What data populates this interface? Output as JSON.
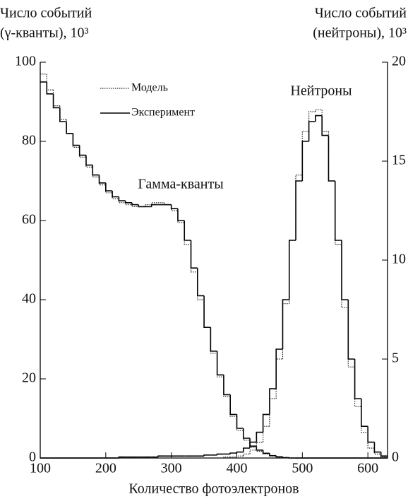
{
  "chart_data": {
    "type": "step",
    "y_label": [
      "Число событий",
      "(γ-кванты), 10³"
    ],
    "y2_label": [
      "Число событий",
      "(нейтроны), 10³"
    ],
    "x_label": "Количество фотоэлектронов",
    "annotations": [
      "Гамма-кванты",
      "Нейтроны"
    ],
    "x": [
      100,
      110,
      120,
      130,
      140,
      150,
      160,
      170,
      180,
      190,
      200,
      210,
      220,
      230,
      240,
      250,
      260,
      270,
      280,
      290,
      300,
      310,
      320,
      330,
      340,
      350,
      360,
      370,
      380,
      390,
      400,
      410,
      420,
      430,
      440,
      450,
      460,
      470,
      480,
      490,
      500,
      510,
      520,
      530,
      540,
      550,
      560,
      570,
      580,
      590,
      600,
      610,
      620
    ],
    "series": [
      {
        "name": "Модель",
        "color": "#222",
        "style": "dotted",
        "axis": "y",
        "values": [
          97,
          93,
          89,
          85.5,
          82,
          78.5,
          76,
          73.5,
          71,
          69,
          67,
          65.5,
          64.5,
          64,
          63.5,
          63.5,
          64,
          64.5,
          64.5,
          64,
          62.5,
          59.5,
          54,
          47,
          40,
          33,
          26.5,
          20.5,
          15.5,
          10.5,
          7,
          4.5,
          2.7,
          1.7,
          1,
          0.5,
          0.2,
          0.1,
          0,
          0,
          0,
          0,
          0,
          0,
          0,
          0,
          0,
          0,
          0,
          0,
          0,
          0,
          0
        ]
      },
      {
        "name": "Эксперимент",
        "color": "#000",
        "style": "solid",
        "axis": "y",
        "values": [
          95,
          92,
          88.5,
          85,
          82,
          79,
          76.5,
          74,
          71.5,
          69.5,
          67.5,
          66,
          65,
          64.5,
          64,
          63.5,
          63.5,
          64,
          64,
          64,
          63,
          60,
          55,
          48,
          41,
          33,
          27,
          21,
          16,
          11,
          7.5,
          5,
          3,
          2,
          1.2,
          0.6,
          0.3,
          0.1,
          0,
          0,
          0,
          0,
          0,
          0,
          0,
          0,
          0,
          0,
          0,
          0,
          0,
          0,
          0
        ]
      },
      {
        "name": "Модель",
        "color": "#222",
        "style": "dotted",
        "axis": "y2",
        "values": [
          0,
          0,
          0,
          0,
          0,
          0,
          0,
          0,
          0,
          0,
          0,
          0,
          0,
          0,
          0,
          0,
          0,
          0,
          0,
          0,
          0,
          0,
          0,
          0,
          0,
          0,
          0,
          0,
          0.05,
          0.05,
          0.1,
          0.2,
          0.4,
          0.8,
          1.6,
          3,
          5,
          7.8,
          11,
          14.3,
          16.5,
          17.5,
          17.6,
          16.5,
          14,
          10.8,
          7.6,
          4.6,
          2.6,
          1.3,
          0.5,
          0.2,
          0.05
        ]
      },
      {
        "name": "Эксперимент",
        "color": "#000",
        "style": "solid",
        "axis": "y2",
        "values": [
          0,
          0,
          0,
          0,
          0,
          0,
          0,
          0,
          0,
          0,
          0,
          0,
          0.05,
          0.05,
          0.05,
          0.05,
          0.05,
          0.05,
          0.1,
          0.1,
          0.1,
          0.1,
          0.1,
          0.1,
          0.1,
          0.15,
          0.15,
          0.2,
          0.2,
          0.25,
          0.3,
          0.5,
          0.8,
          1.3,
          2.2,
          3.5,
          5.5,
          8,
          11,
          14,
          16,
          17,
          17.3,
          16.3,
          14,
          11,
          8,
          5,
          3,
          1.6,
          0.8,
          0.3,
          0.1
        ]
      }
    ],
    "xlim": [
      100,
      630
    ],
    "xticks": [
      100,
      200,
      300,
      400,
      500,
      600
    ],
    "ylim": [
      0,
      100
    ],
    "yticks": [
      0,
      20,
      40,
      60,
      80,
      100
    ],
    "y2lim": [
      0,
      20
    ],
    "y2ticks": [
      0,
      5,
      10,
      15,
      20
    ]
  }
}
